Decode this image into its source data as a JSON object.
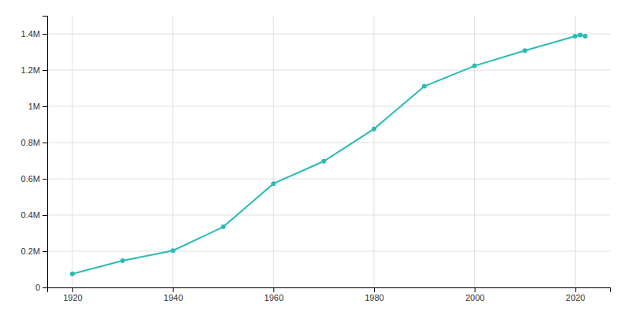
{
  "chart_data": {
    "type": "line",
    "x": [
      1920,
      1930,
      1940,
      1950,
      1960,
      1970,
      1980,
      1990,
      2000,
      2010,
      2020,
      2021,
      2022
    ],
    "values": [
      74683,
      147995,
      203341,
      334387,
      573224,
      696769,
      875538,
      1110549,
      1223400,
      1307402,
      1386932,
      1393949,
      1386932
    ],
    "color": "#2abcb4",
    "marker": "circle",
    "xlim": [
      1915,
      2027
    ],
    "ylim": [
      0,
      1500000
    ],
    "xticks": [
      1920,
      1940,
      1960,
      1980,
      2000,
      2020
    ],
    "yticks": [
      0,
      {
        "value": 200000,
        "label": "0.2M"
      },
      {
        "value": 400000,
        "label": "0.4M"
      },
      {
        "value": 600000,
        "label": "0.6M"
      },
      {
        "value": 800000,
        "label": "0.8M"
      },
      {
        "value": 1000000,
        "label": "1M"
      },
      {
        "value": 1200000,
        "label": "1.2M"
      },
      {
        "value": 1400000,
        "label": "1.4M"
      }
    ],
    "grid": true
  }
}
